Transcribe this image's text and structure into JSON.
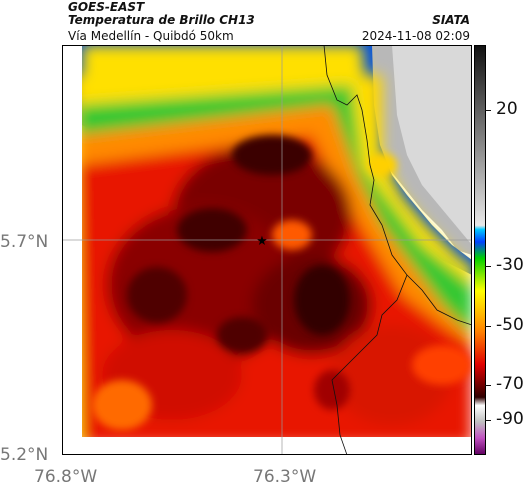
{
  "header": {
    "satellite": "GOES-EAST",
    "product": "Temperatura de Brillo CH13",
    "region": "Vía Medellín - Quibdó 50km",
    "org": "SIATA",
    "datetime": "2024-11-08 02:09"
  },
  "axes": {
    "lat_labels": [
      "5.7°N",
      "5.2°N"
    ],
    "lon_labels": [
      "76.8°W",
      "76.3°W"
    ]
  },
  "colorbar": {
    "labels": [
      "20",
      "-30",
      "-50",
      "-70",
      "-90"
    ]
  },
  "map": {
    "marker": "star-icon",
    "colors": {
      "cold": "#2a0000",
      "red": "#e01000",
      "orange": "#ff7a00",
      "yellow": "#ffe800",
      "green": "#20c020",
      "blue": "#0060ff",
      "grey": "#c8c8c8"
    }
  }
}
